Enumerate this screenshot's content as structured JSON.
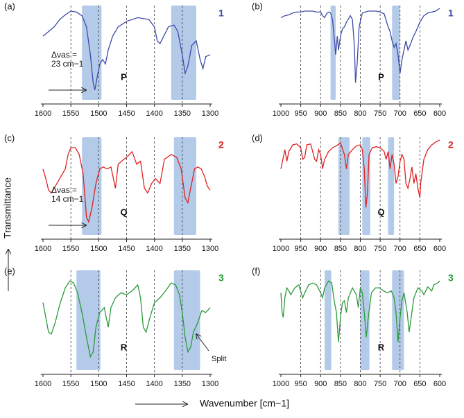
{
  "figure": {
    "ylabel": "Transmittance",
    "xlabel": "Wavenumber [cm−1]"
  },
  "chart_data": [
    {
      "type": "line",
      "panel": "(a)",
      "compound": "1",
      "label": "P",
      "color": "#3c4aa8",
      "annotation": [
        "Δνas =",
        "23 cm−1"
      ],
      "xlim": [
        1600,
        1300
      ],
      "xticks": [
        1600,
        1550,
        1500,
        1450,
        1400,
        1350,
        1300
      ],
      "ylim": [
        0,
        100
      ],
      "grid": true,
      "highlights": [
        [
          1530,
          1495
        ],
        [
          1370,
          1325
        ]
      ],
      "x": [
        1600,
        1590,
        1580,
        1570,
        1560,
        1550,
        1540,
        1530,
        1522,
        1515,
        1510,
        1507,
        1503,
        1498,
        1493,
        1488,
        1483,
        1475,
        1465,
        1450,
        1430,
        1410,
        1400,
        1395,
        1390,
        1385,
        1375,
        1365,
        1358,
        1350,
        1345,
        1340,
        1333,
        1325,
        1318,
        1313,
        1308,
        1300
      ],
      "values": [
        70,
        75,
        80,
        88,
        93,
        97,
        96,
        92,
        80,
        50,
        20,
        12,
        25,
        40,
        45,
        40,
        55,
        70,
        80,
        86,
        90,
        88,
        80,
        65,
        62,
        68,
        80,
        82,
        75,
        50,
        30,
        38,
        60,
        65,
        45,
        35,
        48,
        50
      ]
    },
    {
      "type": "line",
      "panel": "(b)",
      "compound": "1",
      "label": "P",
      "color": "#3c4aa8",
      "xlim": [
        1000,
        600
      ],
      "xticks": [
        1000,
        950,
        900,
        850,
        800,
        750,
        700,
        650,
        600
      ],
      "ylim": [
        0,
        100
      ],
      "grid": true,
      "highlights": [
        [
          875,
          862
        ],
        [
          720,
          700
        ]
      ],
      "x": [
        1000,
        990,
        980,
        970,
        960,
        950,
        940,
        930,
        920,
        910,
        900,
        895,
        890,
        885,
        880,
        875,
        870,
        865,
        862,
        858,
        855,
        850,
        845,
        840,
        835,
        825,
        820,
        815,
        812,
        808,
        803,
        795,
        780,
        760,
        750,
        740,
        730,
        725,
        720,
        715,
        710,
        705,
        700,
        695,
        690,
        685,
        680,
        675,
        668,
        660,
        650,
        640,
        630,
        620,
        610,
        600
      ],
      "values": [
        90,
        92,
        93,
        95,
        96,
        96,
        97,
        97,
        97,
        96,
        96,
        92,
        90,
        94,
        96,
        95,
        88,
        65,
        50,
        70,
        55,
        70,
        78,
        80,
        85,
        92,
        88,
        60,
        20,
        40,
        80,
        95,
        97,
        97,
        96,
        94,
        80,
        75,
        65,
        58,
        62,
        50,
        30,
        45,
        55,
        65,
        55,
        60,
        68,
        75,
        85,
        92,
        95,
        96,
        97,
        100
      ]
    },
    {
      "type": "line",
      "panel": "(c)",
      "compound": "2",
      "label": "Q",
      "color": "#e02020",
      "annotation": [
        "Δνas =",
        "14 cm−1"
      ],
      "xlim": [
        1600,
        1300
      ],
      "xticks": [
        1600,
        1550,
        1500,
        1450,
        1400,
        1350,
        1300
      ],
      "ylim": [
        0,
        100
      ],
      "grid": true,
      "highlights": [
        [
          1530,
          1495
        ],
        [
          1365,
          1325
        ]
      ],
      "x": [
        1600,
        1595,
        1590,
        1585,
        1575,
        1560,
        1555,
        1550,
        1542,
        1535,
        1528,
        1522,
        1518,
        1512,
        1505,
        1498,
        1492,
        1485,
        1478,
        1470,
        1465,
        1455,
        1450,
        1445,
        1440,
        1432,
        1425,
        1418,
        1412,
        1405,
        1398,
        1390,
        1382,
        1370,
        1360,
        1352,
        1345,
        1340,
        1335,
        1328,
        1322,
        1316,
        1310,
        1305,
        1300
      ],
      "values": [
        70,
        60,
        48,
        45,
        55,
        70,
        85,
        92,
        92,
        85,
        65,
        20,
        15,
        30,
        55,
        70,
        72,
        70,
        72,
        50,
        75,
        80,
        82,
        85,
        88,
        75,
        78,
        50,
        45,
        55,
        60,
        55,
        80,
        85,
        82,
        70,
        40,
        35,
        50,
        70,
        72,
        70,
        62,
        52,
        48
      ]
    },
    {
      "type": "line",
      "panel": "(d)",
      "compound": "2",
      "label": "Q",
      "color": "#e02020",
      "xlim": [
        1000,
        600
      ],
      "xticks": [
        1000,
        950,
        900,
        850,
        800,
        750,
        700,
        650,
        600
      ],
      "ylim": [
        0,
        100
      ],
      "grid": true,
      "highlights": [
        [
          855,
          827
        ],
        [
          795,
          775
        ],
        [
          730,
          715
        ]
      ],
      "x": [
        1000,
        995,
        990,
        985,
        980,
        970,
        960,
        950,
        945,
        940,
        935,
        925,
        915,
        910,
        905,
        900,
        895,
        890,
        880,
        870,
        860,
        850,
        840,
        835,
        830,
        820,
        810,
        800,
        795,
        790,
        786,
        782,
        778,
        770,
        760,
        750,
        740,
        735,
        730,
        725,
        720,
        715,
        710,
        705,
        700,
        695,
        690,
        685,
        680,
        675,
        670,
        665,
        660,
        655,
        650,
        648,
        640,
        630,
        620,
        610,
        600
      ],
      "values": [
        70,
        80,
        90,
        78,
        88,
        95,
        96,
        92,
        80,
        82,
        95,
        96,
        80,
        78,
        90,
        85,
        70,
        80,
        88,
        92,
        94,
        97,
        85,
        70,
        85,
        90,
        94,
        95,
        90,
        70,
        30,
        45,
        85,
        92,
        93,
        92,
        88,
        80,
        88,
        70,
        85,
        75,
        55,
        62,
        78,
        85,
        80,
        55,
        50,
        60,
        72,
        55,
        65,
        50,
        40,
        55,
        80,
        90,
        95,
        98,
        100
      ]
    },
    {
      "type": "line",
      "panel": "(e)",
      "compound": "3",
      "label": "R",
      "color": "#2a9a3a",
      "annotation": [
        "Split"
      ],
      "xlim": [
        1600,
        1300
      ],
      "xticks": [
        1600,
        1550,
        1500,
        1450,
        1400,
        1350,
        1300
      ],
      "ylim": [
        0,
        100
      ],
      "grid": true,
      "highlights": [
        [
          1540,
          1497
        ],
        [
          1365,
          1318
        ]
      ],
      "x": [
        1600,
        1595,
        1590,
        1585,
        1578,
        1570,
        1560,
        1552,
        1545,
        1538,
        1530,
        1522,
        1515,
        1510,
        1505,
        1498,
        1490,
        1483,
        1478,
        1470,
        1460,
        1450,
        1440,
        1430,
        1425,
        1420,
        1415,
        1408,
        1400,
        1390,
        1380,
        1370,
        1362,
        1355,
        1350,
        1345,
        1340,
        1335,
        1330,
        1322,
        1315,
        1308,
        1300
      ],
      "values": [
        70,
        55,
        40,
        38,
        50,
        68,
        85,
        92,
        90,
        80,
        60,
        35,
        15,
        20,
        45,
        60,
        65,
        45,
        65,
        75,
        80,
        78,
        82,
        88,
        75,
        45,
        40,
        55,
        70,
        75,
        82,
        90,
        88,
        78,
        60,
        35,
        20,
        25,
        40,
        50,
        62,
        60,
        65
      ]
    },
    {
      "type": "line",
      "panel": "(f)",
      "compound": "3",
      "label": "R",
      "color": "#2a9a3a",
      "xlim": [
        1000,
        600
      ],
      "xticks": [
        1000,
        950,
        900,
        850,
        800,
        750,
        700,
        650,
        600
      ],
      "ylim": [
        0,
        100
      ],
      "grid": true,
      "highlights": [
        [
          890,
          873
        ],
        [
          800,
          777
        ],
        [
          720,
          690
        ]
      ],
      "x": [
        1000,
        997,
        994,
        990,
        985,
        980,
        975,
        965,
        955,
        945,
        940,
        930,
        920,
        910,
        900,
        895,
        890,
        880,
        872,
        865,
        860,
        855,
        850,
        845,
        840,
        835,
        830,
        820,
        810,
        805,
        800,
        795,
        790,
        785,
        780,
        772,
        762,
        752,
        742,
        732,
        722,
        715,
        710,
        705,
        700,
        695,
        690,
        682,
        677,
        672,
        665,
        655,
        645,
        640,
        630,
        620,
        615,
        605,
        600
      ],
      "values": [
        80,
        60,
        55,
        75,
        85,
        82,
        78,
        85,
        88,
        75,
        80,
        88,
        90,
        88,
        80,
        75,
        85,
        92,
        90,
        70,
        60,
        30,
        55,
        70,
        72,
        60,
        75,
        85,
        78,
        65,
        85,
        80,
        60,
        35,
        55,
        80,
        85,
        85,
        82,
        80,
        82,
        75,
        60,
        30,
        55,
        72,
        80,
        60,
        40,
        55,
        75,
        85,
        82,
        78,
        86,
        82,
        88,
        90,
        92
      ]
    }
  ]
}
